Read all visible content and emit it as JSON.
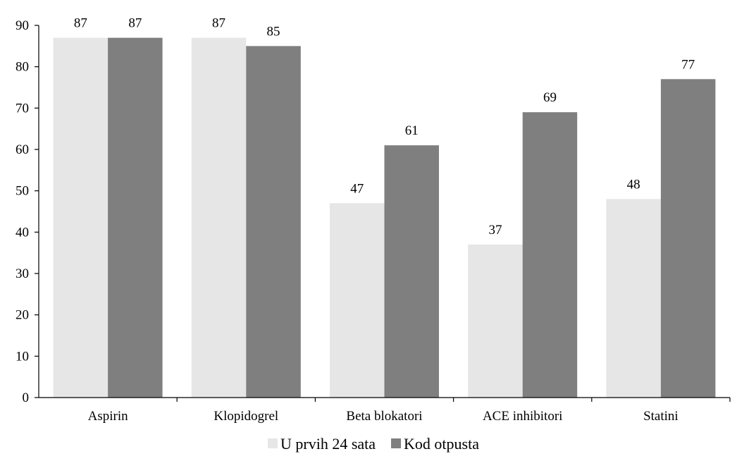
{
  "chart_data": {
    "type": "bar",
    "categories": [
      "Aspirin",
      "Klopidogrel",
      "Beta blokatori",
      "ACE inhibitori",
      "Statini"
    ],
    "series": [
      {
        "name": "U prvih 24 sata",
        "values": [
          87,
          87,
          47,
          37,
          48
        ],
        "color": "#e6e6e6"
      },
      {
        "name": "Kod otpusta",
        "values": [
          87,
          85,
          61,
          69,
          77
        ],
        "color": "#7f7f7f"
      }
    ],
    "ylim": [
      0,
      90
    ],
    "yticks": [
      0,
      10,
      20,
      30,
      40,
      50,
      60,
      70,
      80,
      90
    ],
    "grid": false,
    "legend_position": "bottom",
    "data_labels": true
  }
}
